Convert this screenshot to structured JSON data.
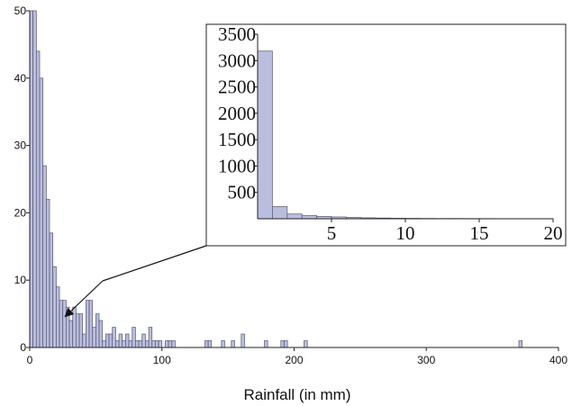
{
  "chart_data": [
    {
      "type": "bar",
      "xlabel": "Rainfall (in mm)",
      "xlim": [
        0,
        400
      ],
      "ylim": [
        0,
        50
      ],
      "xticks": [
        0,
        100,
        200,
        300,
        400
      ],
      "yticks": [
        0,
        10,
        20,
        30,
        40,
        50
      ],
      "bar_width": 2.5,
      "bar_color": "#b9bedf",
      "bar_stroke": "#56566e",
      "x": [
        0,
        2.5,
        5,
        7.5,
        10,
        12.5,
        15,
        17.5,
        20,
        22.5,
        25,
        27.5,
        30,
        32.5,
        35,
        37.5,
        40,
        42.5,
        45,
        47.5,
        50,
        52.5,
        55,
        57.5,
        60,
        62.5,
        65,
        67.5,
        70,
        72.5,
        75,
        77.5,
        80,
        82.5,
        85,
        87.5,
        90,
        92.5,
        95,
        97.5,
        102.5,
        105,
        107.5,
        132.5,
        135,
        145,
        152.5,
        160,
        177.5,
        190,
        192.5,
        207.5,
        370
      ],
      "values": [
        50,
        50,
        44,
        40,
        27,
        22,
        17,
        12,
        9,
        7,
        7,
        6,
        4,
        6,
        5,
        5,
        2,
        7,
        7,
        3,
        5,
        4,
        1,
        2,
        2,
        3,
        1,
        2,
        1,
        2,
        1,
        3,
        1,
        1,
        2,
        1,
        3,
        1,
        1,
        1,
        1,
        1,
        1,
        1,
        1,
        1,
        1,
        2,
        1,
        1,
        1,
        1,
        1
      ]
    },
    {
      "type": "bar",
      "xlim": [
        0,
        20
      ],
      "ylim": [
        0,
        3500
      ],
      "xticks": [
        5,
        10,
        15,
        20
      ],
      "yticks": [
        500,
        1000,
        1500,
        2000,
        2500,
        3000,
        3500
      ],
      "bar_width": 1,
      "bar_color": "#b9bedf",
      "bar_stroke": "#56566e",
      "x": [
        0,
        1,
        2,
        3,
        4,
        5,
        6,
        7,
        8,
        9,
        10,
        11,
        12,
        13,
        14,
        15,
        16,
        17,
        18,
        19
      ],
      "values": [
        3180,
        230,
        90,
        60,
        45,
        35,
        25,
        18,
        14,
        10,
        8,
        6,
        5,
        5,
        4,
        4,
        3,
        3,
        3,
        3
      ]
    }
  ]
}
